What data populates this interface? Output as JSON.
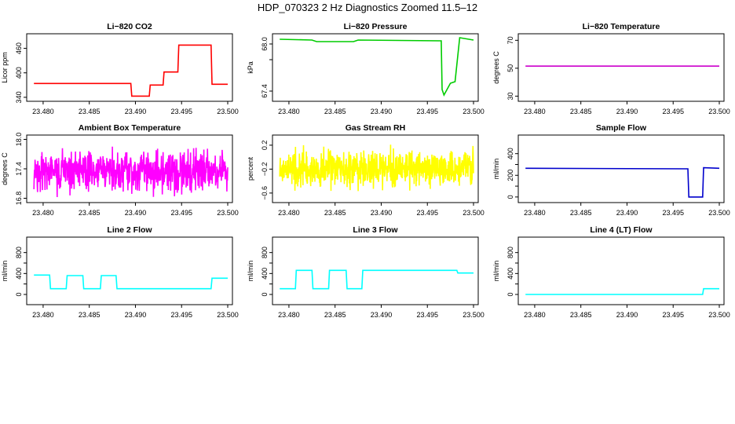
{
  "figure_title": "HDP_070323  2 Hz Diagnostics Zoomed 11.5–12",
  "chart_data": [
    {
      "type": "line",
      "title": "Li−820 CO2",
      "ylabel": "Licor ppm",
      "color": "#ff0000",
      "xlim": [
        23.4789,
        23.5
      ],
      "xticks": [
        23.48,
        23.485,
        23.49,
        23.495,
        23.5
      ],
      "xtick_labels": [
        "23.480",
        "23.485",
        "23.490",
        "23.495",
        "23.500"
      ],
      "ylim": [
        336,
        490
      ],
      "yticks": [
        340,
        400,
        460
      ],
      "ytick_labels": [
        "340",
        "400",
        "460"
      ],
      "series": [
        {
          "x": [
            23.479,
            23.4895,
            23.4896,
            23.4915,
            23.4916,
            23.493,
            23.4931,
            23.4946,
            23.4947,
            23.4982,
            23.4983,
            23.5
          ],
          "y": [
            374,
            374,
            343,
            343,
            370,
            370,
            402,
            402,
            468,
            468,
            372,
            372
          ]
        }
      ]
    },
    {
      "type": "line",
      "title": "Li−820 Pressure",
      "ylabel": "kPa",
      "color": "#00cc00",
      "xlim": [
        23.4789,
        23.5
      ],
      "xticks": [
        23.48,
        23.485,
        23.49,
        23.495,
        23.5
      ],
      "xtick_labels": [
        "23.480",
        "23.485",
        "23.490",
        "23.495",
        "23.500"
      ],
      "ylim": [
        67.3,
        68.1
      ],
      "yticks": [
        67.4,
        67.8,
        68.0
      ],
      "ytick_labels": [
        "67.4",
        "68.0"
      ],
      "series": [
        {
          "x": [
            23.479,
            23.4825,
            23.483,
            23.487,
            23.4875,
            23.4965,
            23.4966,
            23.4968,
            23.4975,
            23.498,
            23.4985,
            23.4995,
            23.5
          ],
          "y": [
            68.06,
            68.05,
            68.03,
            68.03,
            68.05,
            68.04,
            67.42,
            67.35,
            67.5,
            67.52,
            68.08,
            68.06,
            68.05
          ]
        }
      ]
    },
    {
      "type": "line",
      "title": "Li−820 Temperature",
      "ylabel": "degrees C",
      "color": "#cc00cc",
      "xlim": [
        23.4789,
        23.5
      ],
      "xticks": [
        23.48,
        23.485,
        23.49,
        23.495,
        23.5
      ],
      "xtick_labels": [
        "23.480",
        "23.485",
        "23.490",
        "23.495",
        "23.500"
      ],
      "ylim": [
        28,
        73
      ],
      "yticks": [
        30,
        50,
        70
      ],
      "ytick_labels": [
        "30",
        "50",
        "70"
      ],
      "series": [
        {
          "x": [
            23.479,
            23.5
          ],
          "y": [
            51.5,
            51.5
          ]
        }
      ]
    },
    {
      "type": "line",
      "title": "Ambient Box Temperature",
      "ylabel": "degrees C",
      "color": "#ff00ff",
      "noise": true,
      "xlim": [
        23.4789,
        23.5
      ],
      "xticks": [
        23.48,
        23.485,
        23.49,
        23.495,
        23.5
      ],
      "xtick_labels": [
        "23.480",
        "23.485",
        "23.490",
        "23.495",
        "23.500"
      ],
      "ylim": [
        16.76,
        18.04
      ],
      "yticks": [
        16.8,
        17.4,
        18.0
      ],
      "ytick_labels": [
        "16.8",
        "17.4",
        "18.0"
      ],
      "series": [
        {
          "x_range": [
            23.479,
            23.5
          ],
          "center": 17.35,
          "amplitude": 0.6
        }
      ]
    },
    {
      "type": "line",
      "title": "Gas Stream RH",
      "ylabel": "percent",
      "color": "#ffff00",
      "noise": true,
      "xlim": [
        23.4789,
        23.5
      ],
      "xticks": [
        23.48,
        23.485,
        23.49,
        23.495,
        23.5
      ],
      "xtick_labels": [
        "23.480",
        "23.485",
        "23.490",
        "23.495",
        "23.500"
      ],
      "ylim": [
        -0.72,
        0.33
      ],
      "yticks": [
        -0.6,
        -0.2,
        0.2
      ],
      "ytick_labels": [
        "−0.6",
        "−0.2",
        "0.2"
      ],
      "series": [
        {
          "x_range": [
            23.479,
            23.5
          ],
          "center": -0.2,
          "amplitude": 0.45
        }
      ]
    },
    {
      "type": "line",
      "title": "Sample Flow",
      "ylabel": "ml/min",
      "color": "#0000cc",
      "xlim": [
        23.4789,
        23.5
      ],
      "xticks": [
        23.48,
        23.485,
        23.49,
        23.495,
        23.5
      ],
      "xtick_labels": [
        "23.480",
        "23.485",
        "23.490",
        "23.495",
        "23.500"
      ],
      "ylim": [
        -30,
        550
      ],
      "yticks": [
        0,
        100,
        200,
        300,
        400
      ],
      "ytick_labels": [
        "0",
        "200",
        "400"
      ],
      "series": [
        {
          "x": [
            23.479,
            23.4966,
            23.4967,
            23.4982,
            23.4983,
            23.5
          ],
          "y": [
            265,
            260,
            0,
            0,
            270,
            265
          ]
        }
      ]
    },
    {
      "type": "line",
      "title": "Line 2 Flow",
      "ylabel": "ml/min",
      "color": "#00ffff",
      "xlim": [
        23.4789,
        23.5
      ],
      "xticks": [
        23.48,
        23.485,
        23.49,
        23.495,
        23.5
      ],
      "xtick_labels": [
        "23.480",
        "23.485",
        "23.490",
        "23.495",
        "23.500"
      ],
      "ylim": [
        -150,
        1050
      ],
      "yticks": [
        0,
        200,
        400,
        600,
        800
      ],
      "ytick_labels": [
        "0",
        "400",
        "800"
      ],
      "series": [
        {
          "x": [
            23.479,
            23.4807,
            23.4808,
            23.4825,
            23.4826,
            23.4843,
            23.4844,
            23.4862,
            23.4863,
            23.4879,
            23.488,
            23.4982,
            23.4983,
            23.5
          ],
          "y": [
            370,
            370,
            110,
            110,
            360,
            360,
            110,
            110,
            360,
            360,
            110,
            110,
            310,
            310
          ]
        }
      ]
    },
    {
      "type": "line",
      "title": "Line 3 Flow",
      "ylabel": "ml/min",
      "color": "#00ffff",
      "xlim": [
        23.4789,
        23.5
      ],
      "xticks": [
        23.48,
        23.485,
        23.49,
        23.495,
        23.5
      ],
      "xtick_labels": [
        "23.480",
        "23.485",
        "23.490",
        "23.495",
        "23.500"
      ],
      "ylim": [
        -150,
        1050
      ],
      "yticks": [
        0,
        200,
        400,
        600,
        800
      ],
      "ytick_labels": [
        "0",
        "400",
        "800"
      ],
      "series": [
        {
          "x": [
            23.479,
            23.4807,
            23.4808,
            23.4825,
            23.4826,
            23.4843,
            23.4844,
            23.4862,
            23.4863,
            23.4879,
            23.488,
            23.4982,
            23.4983,
            23.5
          ],
          "y": [
            110,
            110,
            460,
            460,
            110,
            110,
            460,
            460,
            110,
            110,
            460,
            460,
            410,
            410
          ]
        }
      ]
    },
    {
      "type": "line",
      "title": "Line 4 (LT) Flow",
      "ylabel": "ml/min",
      "color": "#00ffff",
      "xlim": [
        23.4789,
        23.5
      ],
      "xticks": [
        23.48,
        23.485,
        23.49,
        23.495,
        23.5
      ],
      "xtick_labels": [
        "23.480",
        "23.485",
        "23.490",
        "23.495",
        "23.500"
      ],
      "ylim": [
        -150,
        1050
      ],
      "yticks": [
        0,
        200,
        400,
        600,
        800
      ],
      "ytick_labels": [
        "0",
        "400",
        "800"
      ],
      "series": [
        {
          "x": [
            23.479,
            23.4982,
            23.4983,
            23.5
          ],
          "y": [
            0,
            0,
            110,
            110
          ]
        }
      ]
    }
  ]
}
